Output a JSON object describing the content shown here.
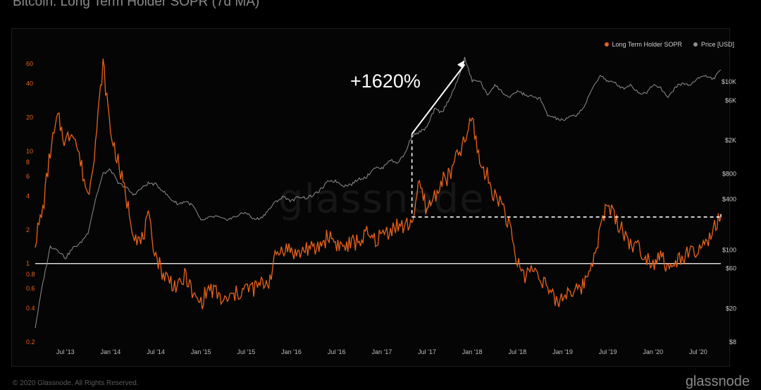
{
  "page": {
    "title": "Bitcoin: Long Term Holder SOPR (7d MA)",
    "watermark": "glassnode",
    "copyright": "© 2020 Glassnode. All Rights Reserved.",
    "brand": "glassnode"
  },
  "legend": {
    "sopr_label": "Long Term Holder SOPR",
    "price_label": "Price [USD]"
  },
  "annotation": {
    "text": "+1620%"
  },
  "colors": {
    "sopr": "#e8621c",
    "price": "#8e8e8e",
    "background": "#000000",
    "reference_line": "#ffffff"
  },
  "chart_data": {
    "type": "line",
    "title": "Bitcoin: Long Term Holder SOPR (7d MA)",
    "x_ticks": [
      "Jul '13",
      "Jan '14",
      "Jul '14",
      "Jan '15",
      "Jul '15",
      "Jan '16",
      "Jul '16",
      "Jan '17",
      "Jul '17",
      "Jan '18",
      "Jul '18",
      "Jan '19",
      "Jul '19",
      "Jan '20",
      "Jul '20"
    ],
    "x_range": [
      "2013-03",
      "2020-10"
    ],
    "y_left": {
      "scale": "log",
      "range": [
        0.2,
        70
      ],
      "ticks": [
        "0.2",
        "0.4",
        "0.6",
        "0.8",
        "1",
        "2",
        "4",
        "6",
        "8",
        "10",
        "20",
        "40",
        "60"
      ],
      "color": "#e8621c"
    },
    "y_right": {
      "scale": "log",
      "range": [
        8,
        20000
      ],
      "ticks": [
        "$8",
        "$20",
        "$60",
        "$100",
        "$400",
        "$800",
        "$2K",
        "$6K",
        "$10K"
      ],
      "color": "#cccccc"
    },
    "reference_line": {
      "axis": "left",
      "value": 1
    },
    "series": [
      {
        "name": "Long Term Holder SOPR",
        "axis": "left",
        "points": [
          [
            "2013-03",
            1.6
          ],
          [
            "2013-04",
            3.0
          ],
          [
            "2013-05",
            10
          ],
          [
            "2013-06",
            20
          ],
          [
            "2013-07",
            12
          ],
          [
            "2013-08",
            16
          ],
          [
            "2013-09",
            8
          ],
          [
            "2013-10",
            4
          ],
          [
            "2013-11",
            12
          ],
          [
            "2013-12",
            60
          ],
          [
            "2014-01",
            15
          ],
          [
            "2014-02",
            8
          ],
          [
            "2014-03",
            4
          ],
          [
            "2014-04",
            2
          ],
          [
            "2014-05",
            1.5
          ],
          [
            "2014-06",
            2.5
          ],
          [
            "2014-07",
            1.2
          ],
          [
            "2014-08",
            0.8
          ],
          [
            "2014-09",
            0.7
          ],
          [
            "2014-10",
            0.6
          ],
          [
            "2014-11",
            0.8
          ],
          [
            "2014-12",
            0.5
          ],
          [
            "2015-01",
            0.45
          ],
          [
            "2015-02",
            0.6
          ],
          [
            "2015-03",
            0.55
          ],
          [
            "2015-04",
            0.45
          ],
          [
            "2015-05",
            0.5
          ],
          [
            "2015-06",
            0.55
          ],
          [
            "2015-07",
            0.6
          ],
          [
            "2015-08",
            0.6
          ],
          [
            "2015-09",
            0.65
          ],
          [
            "2015-10",
            0.7
          ],
          [
            "2015-11",
            1.2
          ],
          [
            "2015-12",
            1.4
          ],
          [
            "2016-01",
            1.3
          ],
          [
            "2016-02",
            1.2
          ],
          [
            "2016-03",
            1.4
          ],
          [
            "2016-04",
            1.3
          ],
          [
            "2016-05",
            1.5
          ],
          [
            "2016-06",
            1.8
          ],
          [
            "2016-07",
            1.5
          ],
          [
            "2016-08",
            1.4
          ],
          [
            "2016-09",
            1.5
          ],
          [
            "2016-10",
            1.6
          ],
          [
            "2016-11",
            1.8
          ],
          [
            "2016-12",
            1.6
          ],
          [
            "2017-01",
            1.8
          ],
          [
            "2017-02",
            2.0
          ],
          [
            "2017-03",
            2.2
          ],
          [
            "2017-04",
            2.1
          ],
          [
            "2017-05",
            2.4
          ],
          [
            "2017-06",
            5.0
          ],
          [
            "2017-07",
            3.0
          ],
          [
            "2017-08",
            4.0
          ],
          [
            "2017-09",
            5.5
          ],
          [
            "2017-10",
            6.0
          ],
          [
            "2017-11",
            9.0
          ],
          [
            "2017-12",
            12.0
          ],
          [
            "2018-01",
            20
          ],
          [
            "2018-02",
            8
          ],
          [
            "2018-03",
            6
          ],
          [
            "2018-04",
            4
          ],
          [
            "2018-05",
            3.5
          ],
          [
            "2018-06",
            2.0
          ],
          [
            "2018-07",
            1.0
          ],
          [
            "2018-08",
            0.8
          ],
          [
            "2018-09",
            0.9
          ],
          [
            "2018-10",
            0.8
          ],
          [
            "2018-11",
            0.6
          ],
          [
            "2018-12",
            0.45
          ],
          [
            "2019-01",
            0.5
          ],
          [
            "2019-02",
            0.6
          ],
          [
            "2019-03",
            0.55
          ],
          [
            "2019-04",
            0.7
          ],
          [
            "2019-05",
            1.1
          ],
          [
            "2019-06",
            2.0
          ],
          [
            "2019-07",
            3.5
          ],
          [
            "2019-08",
            2.5
          ],
          [
            "2019-09",
            2.0
          ],
          [
            "2019-10",
            1.5
          ],
          [
            "2019-11",
            1.4
          ],
          [
            "2019-12",
            1.2
          ],
          [
            "2020-01",
            1.0
          ],
          [
            "2020-02",
            1.3
          ],
          [
            "2020-03",
            0.85
          ],
          [
            "2020-04",
            1.0
          ],
          [
            "2020-05",
            1.2
          ],
          [
            "2020-06",
            1.2
          ],
          [
            "2020-07",
            1.3
          ],
          [
            "2020-08",
            1.4
          ],
          [
            "2020-09",
            2.0
          ],
          [
            "2020-10",
            2.6
          ]
        ]
      },
      {
        "name": "Price [USD]",
        "axis": "right",
        "points": [
          [
            "2013-03",
            12
          ],
          [
            "2013-04",
            40
          ],
          [
            "2013-05",
            110
          ],
          [
            "2013-06",
            100
          ],
          [
            "2013-07",
            80
          ],
          [
            "2013-08",
            105
          ],
          [
            "2013-09",
            120
          ],
          [
            "2013-10",
            160
          ],
          [
            "2013-11",
            400
          ],
          [
            "2013-12",
            800
          ],
          [
            "2014-01",
            900
          ],
          [
            "2014-02",
            620
          ],
          [
            "2014-03",
            560
          ],
          [
            "2014-04",
            450
          ],
          [
            "2014-05",
            530
          ],
          [
            "2014-06",
            620
          ],
          [
            "2014-07",
            600
          ],
          [
            "2014-08",
            500
          ],
          [
            "2014-09",
            400
          ],
          [
            "2014-10",
            350
          ],
          [
            "2014-11",
            380
          ],
          [
            "2014-12",
            330
          ],
          [
            "2015-01",
            220
          ],
          [
            "2015-02",
            240
          ],
          [
            "2015-03",
            250
          ],
          [
            "2015-04",
            230
          ],
          [
            "2015-05",
            235
          ],
          [
            "2015-06",
            260
          ],
          [
            "2015-07",
            280
          ],
          [
            "2015-08",
            230
          ],
          [
            "2015-09",
            240
          ],
          [
            "2015-10",
            300
          ],
          [
            "2015-11",
            380
          ],
          [
            "2015-12",
            430
          ],
          [
            "2016-01",
            380
          ],
          [
            "2016-02",
            430
          ],
          [
            "2016-03",
            415
          ],
          [
            "2016-04",
            450
          ],
          [
            "2016-05",
            530
          ],
          [
            "2016-06",
            670
          ],
          [
            "2016-07",
            650
          ],
          [
            "2016-08",
            580
          ],
          [
            "2016-09",
            605
          ],
          [
            "2016-10",
            700
          ],
          [
            "2016-11",
            740
          ],
          [
            "2016-12",
            960
          ],
          [
            "2017-01",
            920
          ],
          [
            "2017-02",
            1180
          ],
          [
            "2017-03",
            1080
          ],
          [
            "2017-04",
            1350
          ],
          [
            "2017-05",
            2300
          ],
          [
            "2017-06",
            2500
          ],
          [
            "2017-07",
            2870
          ],
          [
            "2017-08",
            4700
          ],
          [
            "2017-09",
            4300
          ],
          [
            "2017-10",
            6400
          ],
          [
            "2017-11",
            9900
          ],
          [
            "2017-12",
            19000
          ],
          [
            "2018-01",
            10200
          ],
          [
            "2018-02",
            10300
          ],
          [
            "2018-03",
            6900
          ],
          [
            "2018-04",
            9200
          ],
          [
            "2018-05",
            7500
          ],
          [
            "2018-06",
            6400
          ],
          [
            "2018-07",
            7800
          ],
          [
            "2018-08",
            7000
          ],
          [
            "2018-09",
            6600
          ],
          [
            "2018-10",
            6300
          ],
          [
            "2018-11",
            4000
          ],
          [
            "2018-12",
            3700
          ],
          [
            "2019-01",
            3450
          ],
          [
            "2019-02",
            3800
          ],
          [
            "2019-03",
            4100
          ],
          [
            "2019-04",
            5300
          ],
          [
            "2019-05",
            8500
          ],
          [
            "2019-06",
            12000
          ],
          [
            "2019-07",
            10100
          ],
          [
            "2019-08",
            9600
          ],
          [
            "2019-09",
            8300
          ],
          [
            "2019-10",
            9200
          ],
          [
            "2019-11",
            7500
          ],
          [
            "2019-12",
            7200
          ],
          [
            "2020-01",
            9300
          ],
          [
            "2020-02",
            8600
          ],
          [
            "2020-03",
            6400
          ],
          [
            "2020-04",
            8800
          ],
          [
            "2020-05",
            9500
          ],
          [
            "2020-06",
            9100
          ],
          [
            "2020-07",
            11300
          ],
          [
            "2020-08",
            11600
          ],
          [
            "2020-09",
            10800
          ],
          [
            "2020-10",
            13800
          ]
        ]
      }
    ],
    "annotations": [
      {
        "type": "arrow",
        "text": "+1620%",
        "from": {
          "x": "2017-05",
          "price": 2400
        },
        "to": {
          "x": "2017-12",
          "price": 18000
        }
      },
      {
        "type": "dashed-box",
        "from": {
          "x": "2017-05",
          "sopr": 2.6
        },
        "to": {
          "x": "2020-10",
          "sopr": 2.6
        }
      }
    ],
    "grid": false,
    "legend_position": "top-right"
  }
}
